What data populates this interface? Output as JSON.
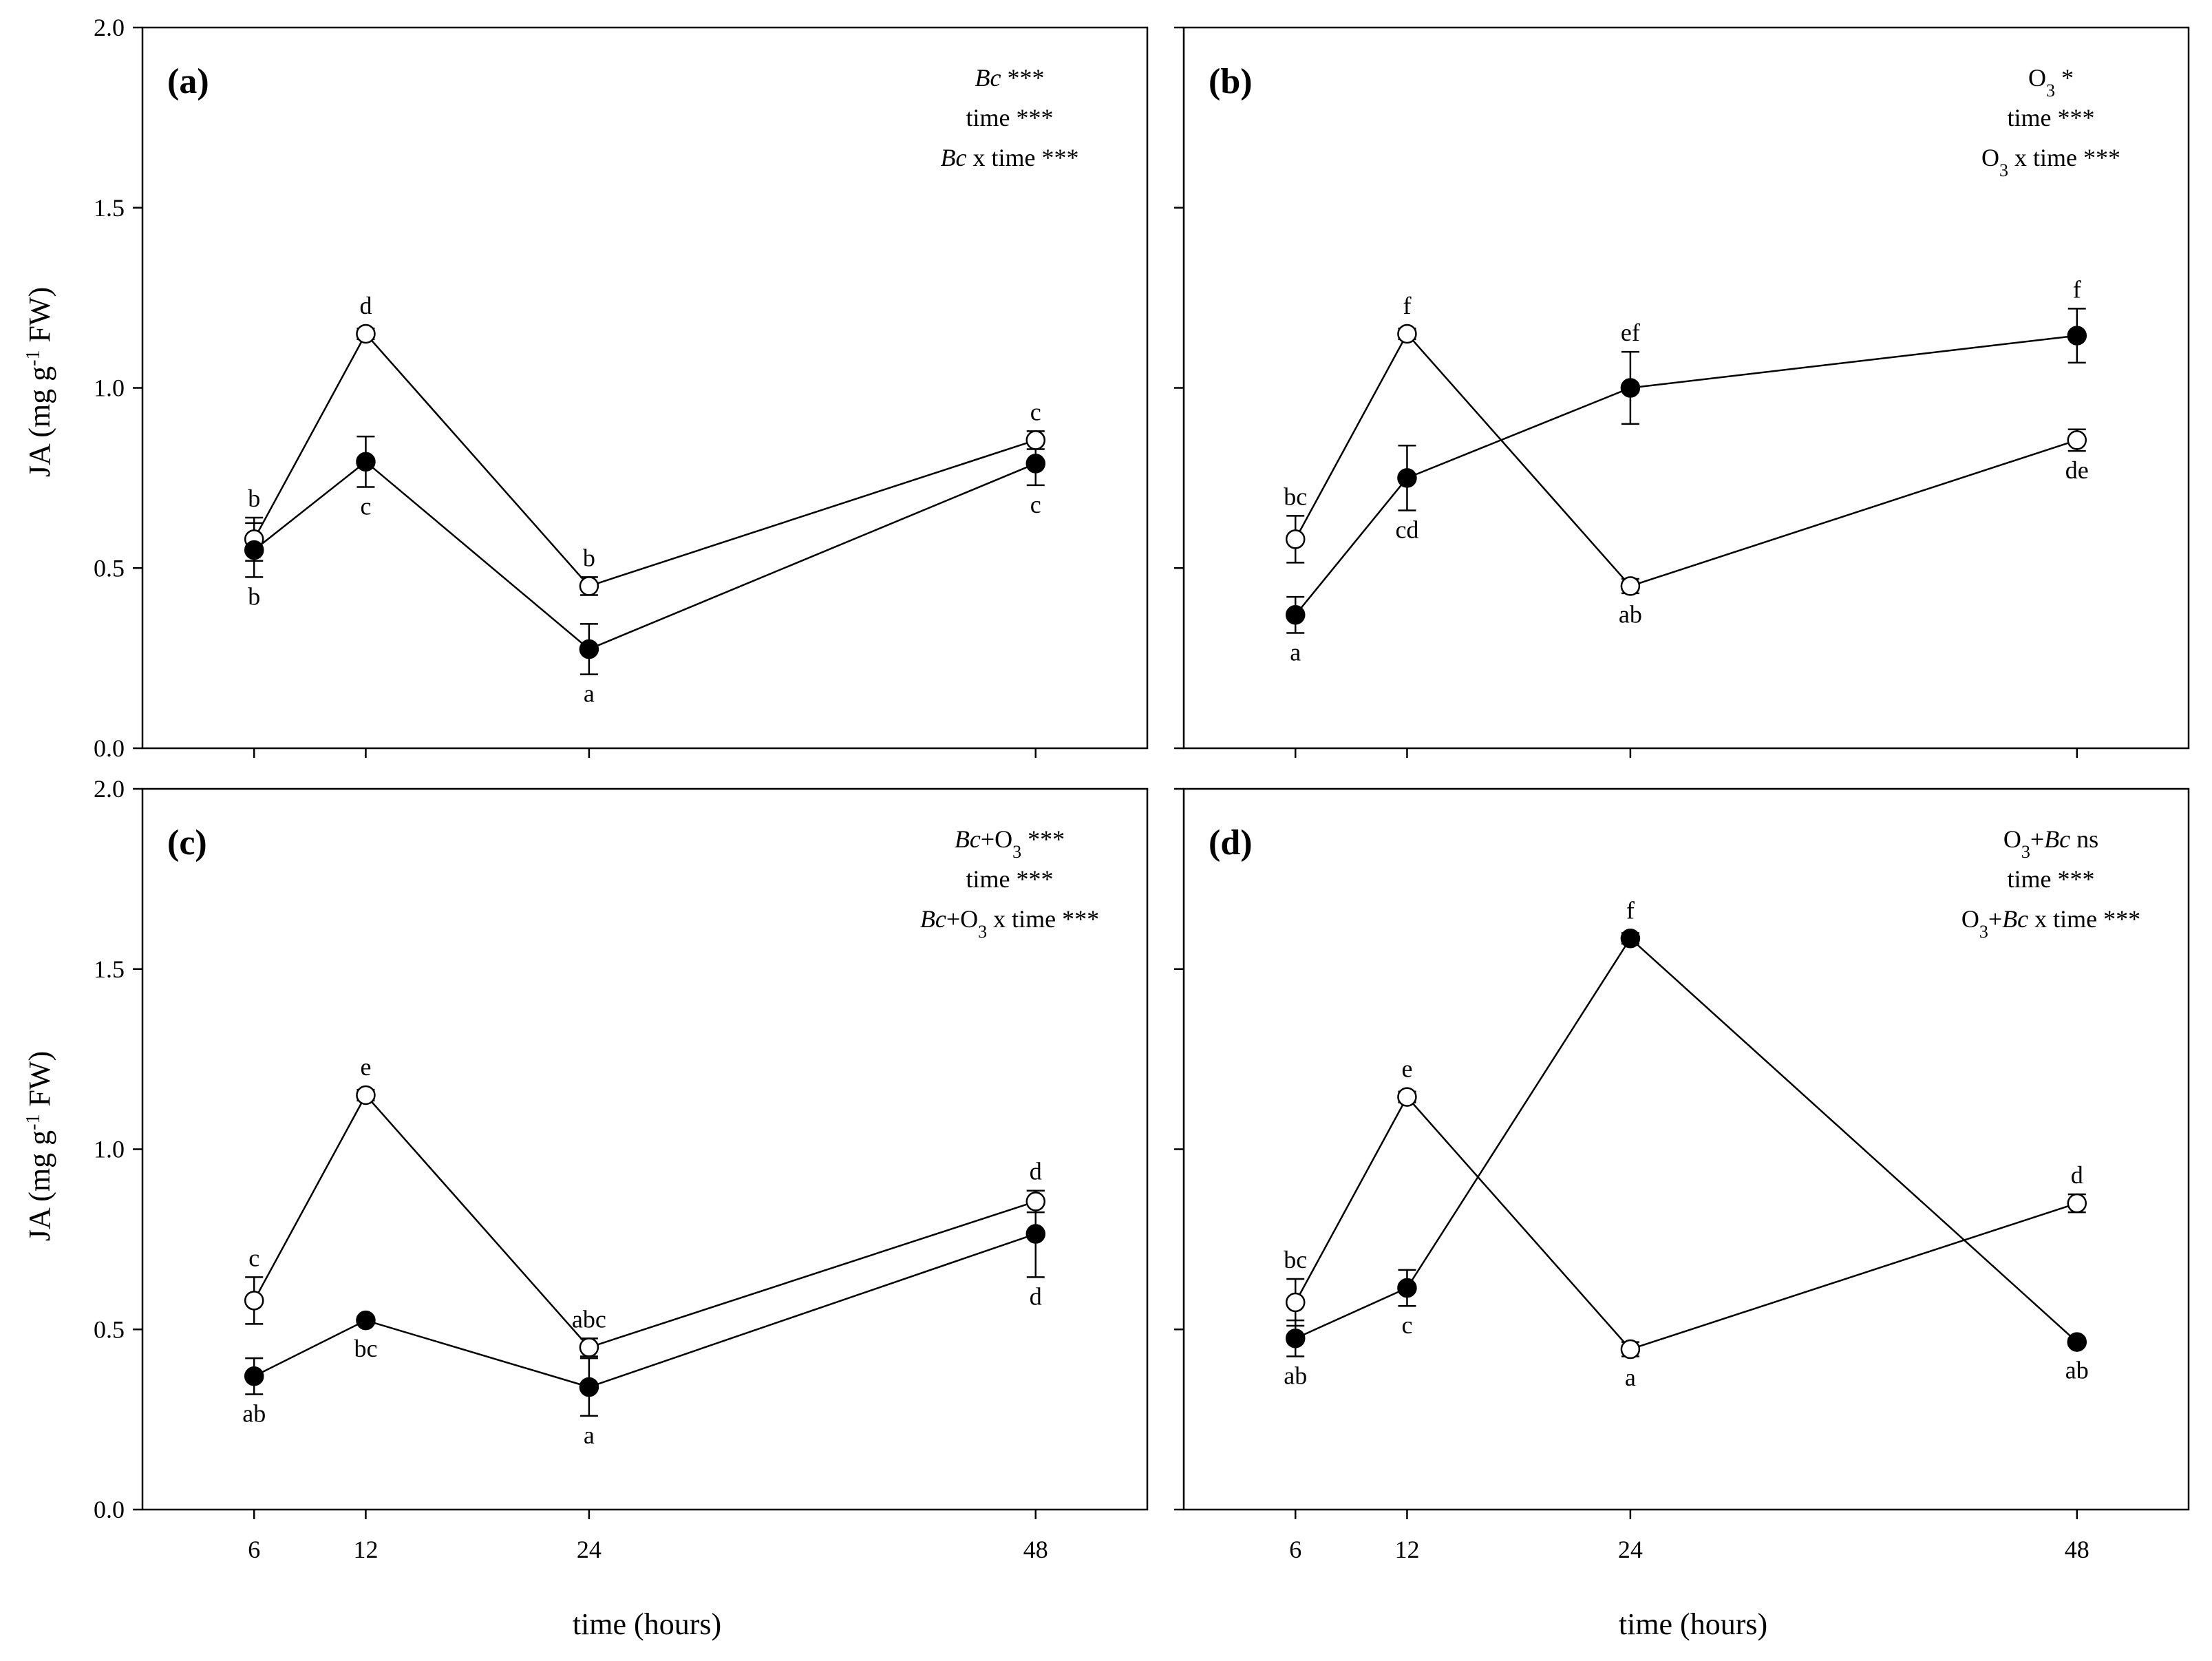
{
  "figure": {
    "x_axis_title": "time (hours)",
    "y_axis_title": "JA (mg g-1 FW)",
    "y_axis_title_parts": {
      "before": "JA (mg g",
      "sup": "-1",
      "after": " FW)"
    }
  },
  "chart_data": [
    {
      "type": "line",
      "panel": "(a)",
      "stats": [
        [
          {
            "t": "Bc",
            "i": true
          },
          {
            "t": " ***"
          }
        ],
        [
          {
            "t": "time ***"
          }
        ],
        [
          {
            "t": "Bc",
            "i": true
          },
          {
            "t": " x time ***"
          }
        ]
      ],
      "x": [
        6,
        12,
        24,
        48
      ],
      "x_ticks": [
        "6",
        "12",
        "24",
        "48"
      ],
      "xlim": [
        0,
        54
      ],
      "ylim": [
        0,
        2.0
      ],
      "y_ticks": [
        "0.0",
        "0.5",
        "1.0",
        "1.5",
        "2.0"
      ],
      "series": [
        {
          "name": "open",
          "marker": "open-circle",
          "values": [
            0.58,
            1.15,
            0.45,
            0.855
          ],
          "err": [
            0.06,
            0.015,
            0.025,
            0.025
          ],
          "letters": [
            "b",
            "d",
            "b",
            "c"
          ],
          "letter_pos": [
            "above",
            "above",
            "above",
            "above"
          ]
        },
        {
          "name": "filled",
          "marker": "filled-circle",
          "values": [
            0.55,
            0.795,
            0.275,
            0.79
          ],
          "err": [
            0.075,
            0.07,
            0.07,
            0.06
          ],
          "letters": [
            "b",
            "c",
            "a",
            "c"
          ],
          "letter_pos": [
            "below",
            "below",
            "below",
            "below"
          ]
        }
      ]
    },
    {
      "type": "line",
      "panel": "(b)",
      "stats": [
        [
          {
            "t": "O"
          },
          {
            "t": "3",
            "sub": true
          },
          {
            "t": " *"
          }
        ],
        [
          {
            "t": "time ***"
          }
        ],
        [
          {
            "t": "O"
          },
          {
            "t": "3",
            "sub": true
          },
          {
            "t": " x time ***"
          }
        ]
      ],
      "x": [
        6,
        12,
        24,
        48
      ],
      "x_ticks": [
        "6",
        "12",
        "24",
        "48"
      ],
      "xlim": [
        0,
        54
      ],
      "ylim": [
        0,
        2.0
      ],
      "y_ticks": [
        "0.0",
        "0.5",
        "1.0",
        "1.5",
        "2.0"
      ],
      "series": [
        {
          "name": "open",
          "marker": "open-circle",
          "values": [
            0.58,
            1.15,
            0.45,
            0.855
          ],
          "err": [
            0.065,
            0.015,
            0.02,
            0.03
          ],
          "letters": [
            "bc",
            "f",
            "ab",
            "de"
          ],
          "letter_pos": [
            "above",
            "above",
            "below",
            "below"
          ]
        },
        {
          "name": "filled",
          "marker": "filled-circle",
          "values": [
            0.37,
            0.75,
            1.0,
            1.145
          ],
          "err": [
            0.05,
            0.09,
            0.1,
            0.075
          ],
          "letters": [
            "a",
            "cd",
            "ef",
            "f"
          ],
          "letter_pos": [
            "below",
            "below",
            "above",
            "above"
          ]
        }
      ]
    },
    {
      "type": "line",
      "panel": "(c)",
      "stats": [
        [
          {
            "t": "Bc",
            "i": true
          },
          {
            "t": "+O"
          },
          {
            "t": "3",
            "sub": true
          },
          {
            "t": " ***"
          }
        ],
        [
          {
            "t": "time ***"
          }
        ],
        [
          {
            "t": "Bc",
            "i": true
          },
          {
            "t": "+O"
          },
          {
            "t": "3",
            "sub": true
          },
          {
            "t": " x time ***"
          }
        ]
      ],
      "x": [
        6,
        12,
        24,
        48
      ],
      "x_ticks": [
        "6",
        "12",
        "24",
        "48"
      ],
      "xlim": [
        0,
        54
      ],
      "ylim": [
        0,
        2.0
      ],
      "y_ticks": [
        "0.0",
        "0.5",
        "1.0",
        "1.5",
        "2.0"
      ],
      "series": [
        {
          "name": "open",
          "marker": "open-circle",
          "values": [
            0.58,
            1.15,
            0.45,
            0.855
          ],
          "err": [
            0.065,
            0.015,
            0.025,
            0.03
          ],
          "letters": [
            "c",
            "e",
            "abc",
            "d"
          ],
          "letter_pos": [
            "above",
            "above",
            "above",
            "above"
          ]
        },
        {
          "name": "filled",
          "marker": "filled-circle",
          "values": [
            0.37,
            0.525,
            0.34,
            0.765
          ],
          "err": [
            0.05,
            0.01,
            0.08,
            0.12
          ],
          "letters": [
            "ab",
            "bc",
            "a",
            "d"
          ],
          "letter_pos": [
            "below",
            "below",
            "below",
            "below"
          ]
        }
      ]
    },
    {
      "type": "line",
      "panel": "(d)",
      "stats": [
        [
          {
            "t": "O"
          },
          {
            "t": "3",
            "sub": true
          },
          {
            "t": "+"
          },
          {
            "t": "Bc",
            "i": true
          },
          {
            "t": " ns"
          }
        ],
        [
          {
            "t": "time ***"
          }
        ],
        [
          {
            "t": "O"
          },
          {
            "t": "3",
            "sub": true
          },
          {
            "t": "+"
          },
          {
            "t": "Bc",
            "i": true
          },
          {
            "t": " x time ***"
          }
        ]
      ],
      "x": [
        6,
        12,
        24,
        48
      ],
      "x_ticks": [
        "6",
        "12",
        "24",
        "48"
      ],
      "xlim": [
        0,
        54
      ],
      "ylim": [
        0,
        2.0
      ],
      "y_ticks": [
        "0.0",
        "0.5",
        "1.0",
        "1.5",
        "2.0"
      ],
      "series": [
        {
          "name": "open",
          "marker": "open-circle",
          "values": [
            0.575,
            1.145,
            0.445,
            0.85
          ],
          "err": [
            0.065,
            0.015,
            0.02,
            0.025
          ],
          "letters": [
            "bc",
            "e",
            "a",
            "d"
          ],
          "letter_pos": [
            "above",
            "above",
            "below",
            "above"
          ]
        },
        {
          "name": "filled",
          "marker": "filled-circle",
          "values": [
            0.475,
            0.615,
            1.585,
            0.465
          ],
          "err": [
            0.05,
            0.05,
            0.015,
            0.01
          ],
          "letters": [
            "ab",
            "c",
            "f",
            "ab"
          ],
          "letter_pos": [
            "below",
            "below",
            "above",
            "below"
          ]
        }
      ]
    }
  ]
}
